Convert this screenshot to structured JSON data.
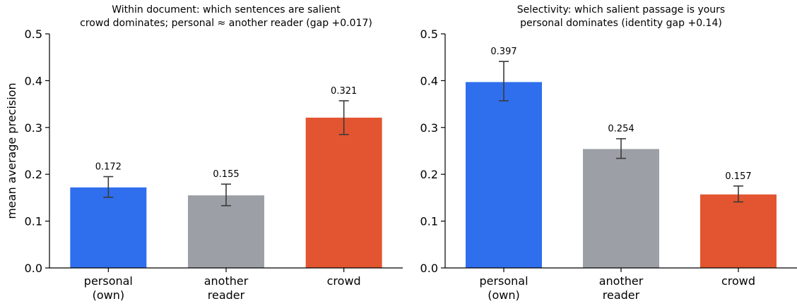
{
  "chart_data": [
    {
      "type": "bar",
      "title": "Within document: which sentences are salient",
      "subtitle": "crowd dominates; personal ≈ another reader (gap +0.017)",
      "ylabel": "mean average precision",
      "ylim": [
        0,
        0.5
      ],
      "yticks": [
        "0.0",
        "0.1",
        "0.2",
        "0.3",
        "0.4",
        "0.5"
      ],
      "categories": [
        [
          "personal",
          "(own)"
        ],
        [
          "another",
          "reader"
        ],
        [
          "crowd"
        ]
      ],
      "values": [
        0.172,
        0.155,
        0.321
      ],
      "value_labels": [
        "0.172",
        "0.155",
        "0.321"
      ],
      "error_low": [
        0.151,
        0.133,
        0.285
      ],
      "error_high": [
        0.195,
        0.179,
        0.357
      ],
      "colors": [
        "#2f6fed",
        "#9ca0a6",
        "#e35530"
      ]
    },
    {
      "type": "bar",
      "title": "Selectivity: which salient passage is yours",
      "subtitle": "personal dominates (identity gap +0.14)",
      "ylabel": "",
      "ylim": [
        0,
        0.5
      ],
      "yticks": [
        "0.0",
        "0.1",
        "0.2",
        "0.3",
        "0.4",
        "0.5"
      ],
      "categories": [
        [
          "personal",
          "(own)"
        ],
        [
          "another",
          "reader"
        ],
        [
          "crowd"
        ]
      ],
      "values": [
        0.397,
        0.254,
        0.157
      ],
      "value_labels": [
        "0.397",
        "0.254",
        "0.157"
      ],
      "error_low": [
        0.357,
        0.234,
        0.141
      ],
      "error_high": [
        0.441,
        0.276,
        0.175
      ],
      "colors": [
        "#2f6fed",
        "#9ca0a6",
        "#e35530"
      ]
    }
  ]
}
